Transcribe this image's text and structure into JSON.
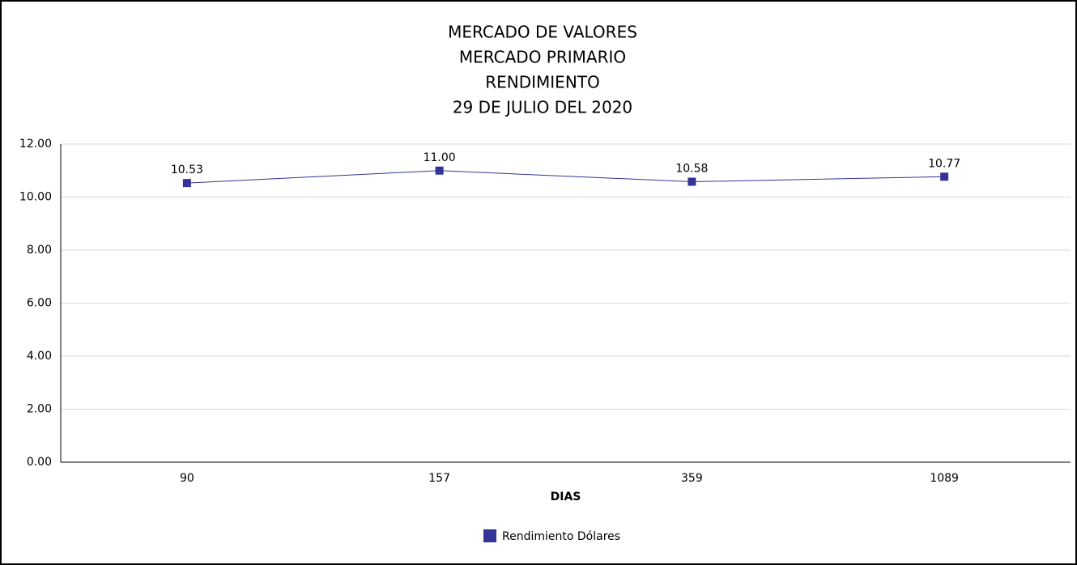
{
  "chart_data": {
    "type": "line",
    "title": [
      "MERCADO DE VALORES",
      "MERCADO PRIMARIO",
      "RENDIMIENTO",
      "29 DE JULIO DEL 2020"
    ],
    "x_label": "DIAS",
    "categories": [
      "90",
      "157",
      "359",
      "1089"
    ],
    "series": [
      {
        "name": "Rendimiento Dólares",
        "color": "#333399",
        "values": [
          10.53,
          11.0,
          10.58,
          10.77
        ],
        "value_labels": [
          "10.53",
          "11.00",
          "10.58",
          "10.77"
        ]
      }
    ],
    "ylim": [
      0,
      12
    ],
    "yticks": [
      {
        "value": 0,
        "label": "0.00"
      },
      {
        "value": 2,
        "label": "2.00"
      },
      {
        "value": 4,
        "label": "4.00"
      },
      {
        "value": 6,
        "label": "6.00"
      },
      {
        "value": 8,
        "label": "8.00"
      },
      {
        "value": 10,
        "label": "10.00"
      },
      {
        "value": 12,
        "label": "12.00"
      }
    ],
    "grid": true,
    "legend": "bottom"
  }
}
